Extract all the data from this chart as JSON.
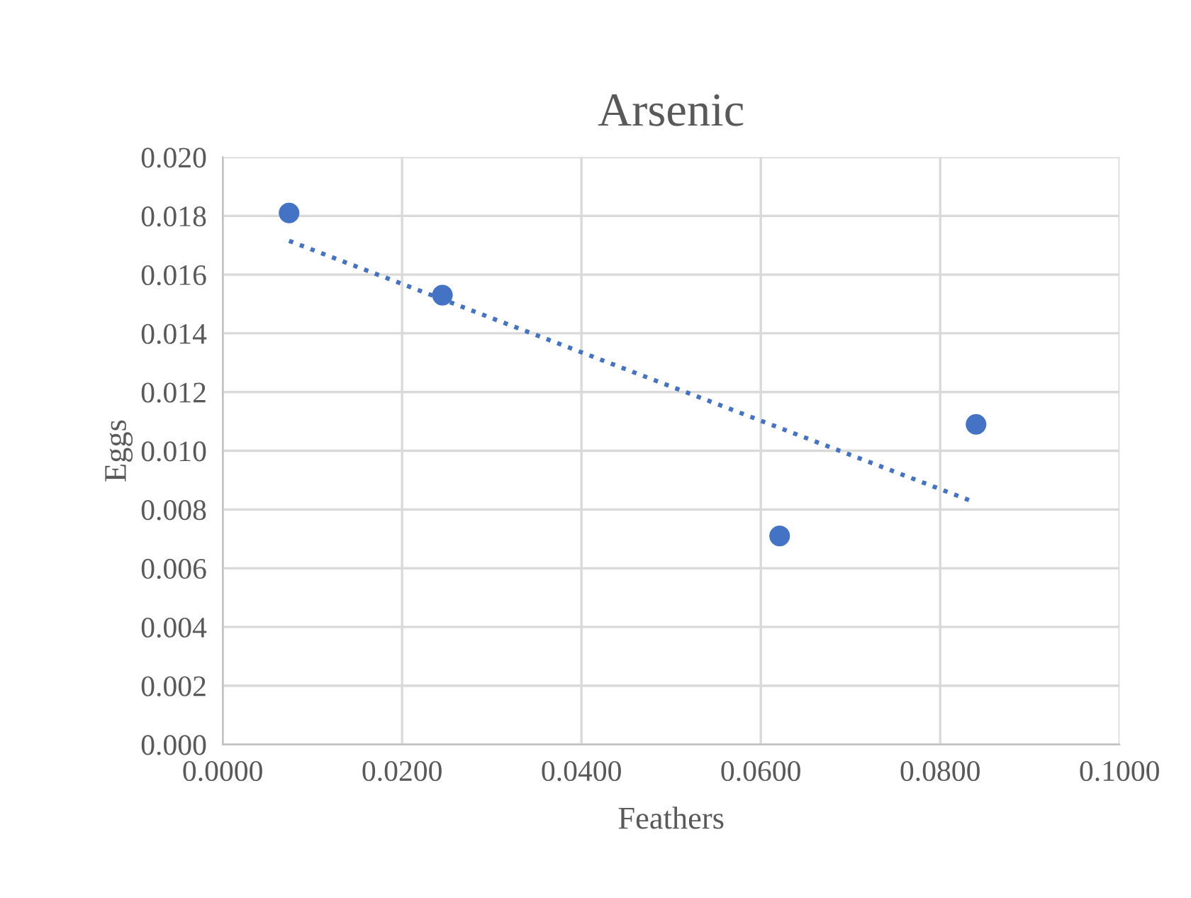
{
  "chart_data": {
    "type": "scatter",
    "title": "Arsenic",
    "xlabel": "Feathers",
    "ylabel": "Eggs",
    "series": [
      {
        "color": "#4472c4",
        "x": [
          0.0074,
          0.0245,
          0.0621,
          0.084
        ],
        "values": [
          0.0181,
          0.0153,
          0.0071,
          0.0109
        ],
        "marker": "circle"
      },
      {
        "type": "line",
        "color": "#4472c4",
        "x": [
          0.0074,
          0.0834
        ],
        "values": [
          0.01715,
          0.0083
        ],
        "line_style": "dotted",
        "marker": "none"
      }
    ],
    "xlim": [
      0,
      0.1
    ],
    "xticks": [
      {
        "value": 0,
        "label": "0.0000"
      },
      {
        "value": 0.02,
        "label": "0.0200"
      },
      {
        "value": 0.04,
        "label": "0.0400"
      },
      {
        "value": 0.06,
        "label": "0.0600"
      },
      {
        "value": 0.08,
        "label": "0.0800"
      },
      {
        "value": 0.1,
        "label": "0.1000"
      }
    ],
    "ylim": [
      0,
      0.02
    ],
    "yticks": [
      {
        "value": 0,
        "label": "0.000"
      },
      {
        "value": 0.002,
        "label": "0.002"
      },
      {
        "value": 0.004,
        "label": "0.004"
      },
      {
        "value": 0.006,
        "label": "0.006"
      },
      {
        "value": 0.008,
        "label": "0.008"
      },
      {
        "value": 0.01,
        "label": "0.010"
      },
      {
        "value": 0.012,
        "label": "0.012"
      },
      {
        "value": 0.014,
        "label": "0.014"
      },
      {
        "value": 0.016,
        "label": "0.016"
      },
      {
        "value": 0.018,
        "label": "0.018"
      },
      {
        "value": 0.02,
        "label": "0.020"
      }
    ],
    "grid": true,
    "legend": false
  }
}
